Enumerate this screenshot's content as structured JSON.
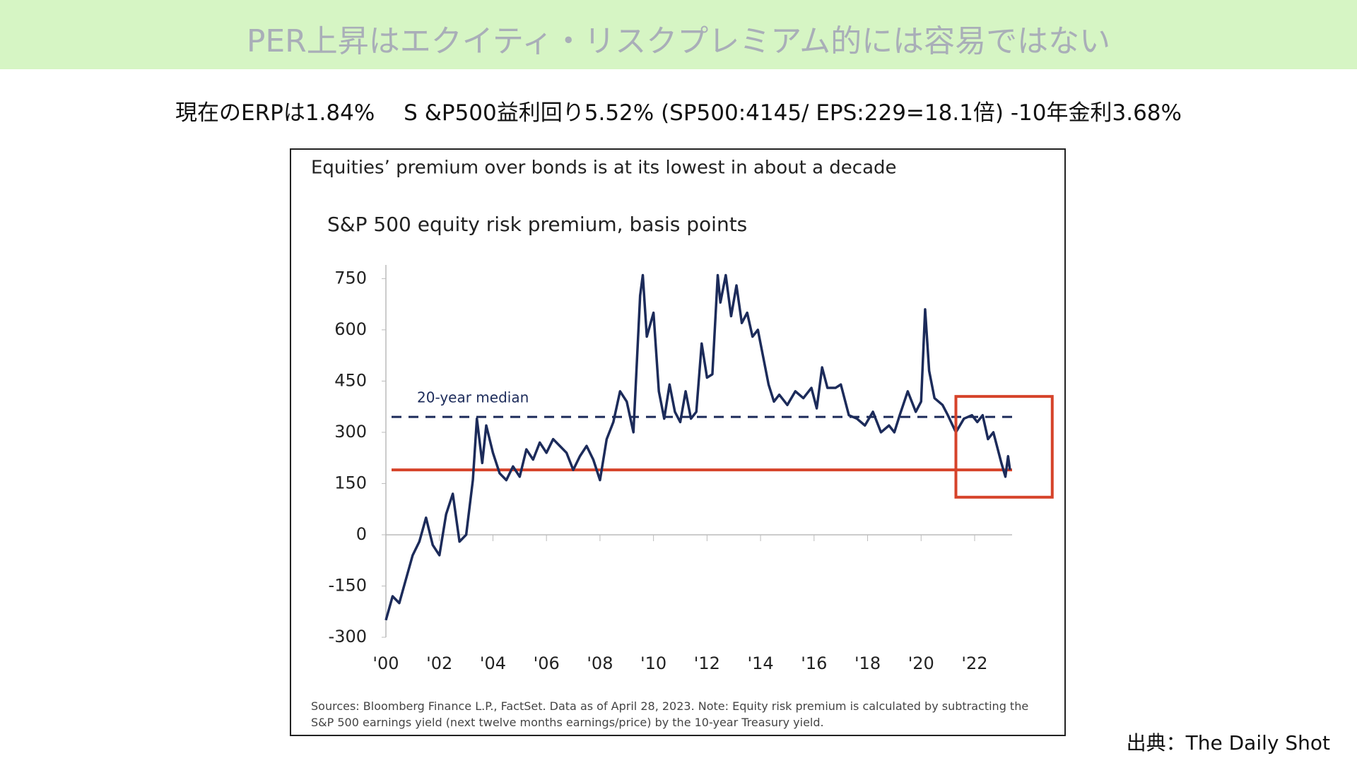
{
  "header": {
    "title": "PER上昇はエクイティ・リスクプレミアム的には容易ではない",
    "subtitle": "現在のERPは1.84%　 S &P500益利回り5.52% (SP500:4145/ EPS:229=18.1倍) -10年金利3.68%"
  },
  "chart_data": {
    "type": "line",
    "title": "Equities’ premium over bonds is at its lowest in about a decade",
    "subtitle": "S&P 500 equity risk premium, basis points",
    "note": "Sources: Bloomberg Finance L.P., FactSet. Data as of April 28, 2023. Note: Equity risk premium is calculated by subtracting the S&P 500 earnings yield (next twelve months earnings/price) by the 10-year Treasury yield.",
    "x": [
      2000.0,
      2000.25,
      2000.5,
      2000.75,
      2001.0,
      2001.25,
      2001.5,
      2001.75,
      2002.0,
      2002.25,
      2002.5,
      2002.75,
      2003.0,
      2003.25,
      2003.4,
      2003.6,
      2003.75,
      2004.0,
      2004.25,
      2004.5,
      2004.75,
      2005.0,
      2005.25,
      2005.5,
      2005.75,
      2006.0,
      2006.25,
      2006.5,
      2006.75,
      2007.0,
      2007.25,
      2007.5,
      2007.75,
      2008.0,
      2008.25,
      2008.5,
      2008.75,
      2009.0,
      2009.25,
      2009.5,
      2009.6,
      2009.75,
      2010.0,
      2010.2,
      2010.4,
      2010.6,
      2010.8,
      2011.0,
      2011.2,
      2011.4,
      2011.6,
      2011.8,
      2012.0,
      2012.2,
      2012.4,
      2012.5,
      2012.7,
      2012.9,
      2013.1,
      2013.3,
      2013.5,
      2013.7,
      2013.9,
      2014.1,
      2014.3,
      2014.5,
      2014.7,
      2015.0,
      2015.3,
      2015.6,
      2015.9,
      2016.1,
      2016.3,
      2016.5,
      2016.8,
      2017.0,
      2017.3,
      2017.6,
      2017.9,
      2018.2,
      2018.5,
      2018.8,
      2019.0,
      2019.2,
      2019.5,
      2019.8,
      2020.0,
      2020.15,
      2020.3,
      2020.5,
      2020.8,
      2021.0,
      2021.3,
      2021.6,
      2021.9,
      2022.1,
      2022.3,
      2022.5,
      2022.7,
      2022.9,
      2023.0,
      2023.15,
      2023.25,
      2023.32
    ],
    "series": [
      {
        "name": "S&P 500 equity risk premium",
        "color": "#1c2b5a",
        "values": [
          -250,
          -180,
          -200,
          -130,
          -60,
          -20,
          50,
          -30,
          -60,
          60,
          120,
          -20,
          0,
          160,
          340,
          210,
          320,
          240,
          180,
          160,
          200,
          170,
          250,
          220,
          270,
          240,
          280,
          260,
          240,
          190,
          230,
          260,
          220,
          160,
          280,
          330,
          420,
          390,
          300,
          700,
          760,
          580,
          650,
          420,
          340,
          440,
          360,
          330,
          420,
          340,
          360,
          560,
          460,
          470,
          760,
          680,
          760,
          640,
          730,
          620,
          650,
          580,
          600,
          520,
          440,
          390,
          410,
          380,
          420,
          400,
          430,
          370,
          490,
          430,
          430,
          440,
          350,
          340,
          320,
          360,
          300,
          320,
          300,
          350,
          420,
          360,
          390,
          660,
          480,
          400,
          380,
          350,
          300,
          340,
          350,
          330,
          350,
          280,
          300,
          240,
          210,
          170,
          230,
          190
        ]
      }
    ],
    "xlim": [
      2000,
      2023.4
    ],
    "xticks": [
      {
        "value": 2000,
        "label": "'00"
      },
      {
        "value": 2002,
        "label": "'02"
      },
      {
        "value": 2004,
        "label": "'04"
      },
      {
        "value": 2006,
        "label": "'06"
      },
      {
        "value": 2008,
        "label": "'08"
      },
      {
        "value": 2010,
        "label": "'10"
      },
      {
        "value": 2012,
        "label": "'12"
      },
      {
        "value": 2014,
        "label": "'14"
      },
      {
        "value": 2016,
        "label": "'16"
      },
      {
        "value": 2018,
        "label": "'18"
      },
      {
        "value": 2020,
        "label": "'20"
      },
      {
        "value": 2022,
        "label": "'22"
      }
    ],
    "ylim": [
      -300,
      790
    ],
    "yticks": [
      750,
      600,
      450,
      300,
      150,
      0,
      -150,
      -300
    ],
    "reference_lines": [
      {
        "value": 345,
        "label": "20-year median",
        "style": "dashed",
        "color": "#1c2b5a"
      },
      {
        "value": 190,
        "style": "solid",
        "color": "#d6432a"
      }
    ],
    "highlight_box": {
      "x": [
        2021.3,
        2024.9
      ],
      "y": [
        110,
        405
      ],
      "color": "#d6432a"
    }
  },
  "source": "出典：The Daily Shot"
}
